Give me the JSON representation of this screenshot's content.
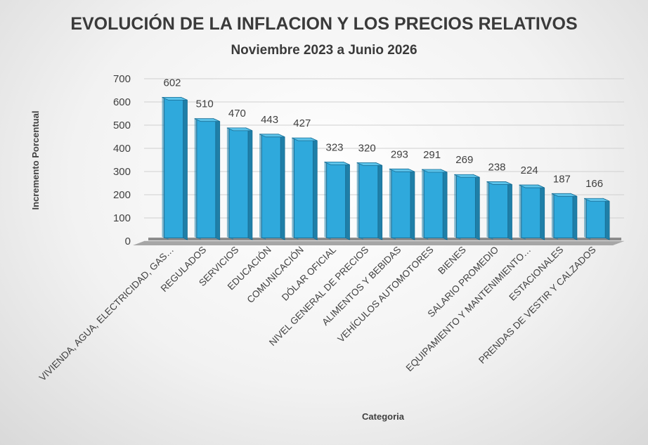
{
  "chart_data": {
    "type": "bar",
    "title": "EVOLUCIÓN DE LA INFLACION Y LOS PRECIOS RELATIVOS",
    "subtitle": "Noviembre 2023 a Junio 2026",
    "xlabel": "Categoria",
    "ylabel": "Incremento Porcentual",
    "ylim": [
      0,
      700
    ],
    "yticks": [
      0,
      100,
      200,
      300,
      400,
      500,
      600,
      700
    ],
    "grid": true,
    "legend": "none",
    "categories": [
      "VIVIENDA, AGUA, ELECTRICIDAD, GAS…",
      "REGULADOS",
      "SERVICIOS",
      "EDUCACIÓN",
      "COMUNICACIÓN",
      "DÓLAR OFICIAL",
      "NIVEL GENERAL DE PRECIOS",
      "ALIMENTOS Y BEBIDAS",
      "VEHÍCULOS AUTOMOTORES",
      "BIENES",
      "SALARIO PROMEDIO",
      "EQUIPAMIENTO Y MANTENIMIENTO…",
      "ESTACIONALES",
      "PRENDAS DE VESTIR Y CALZADOS"
    ],
    "values": [
      602,
      510,
      470,
      443,
      427,
      323,
      320,
      293,
      291,
      269,
      238,
      224,
      187,
      166
    ],
    "colors": {
      "bar_front": "#2fa9dc",
      "bar_side": "#1f7fa8",
      "bar_top": "#5cc3ea",
      "bar_edge": "#1a6f96",
      "floor": "#a6a6a6",
      "grid": "#d0d0d0"
    }
  }
}
